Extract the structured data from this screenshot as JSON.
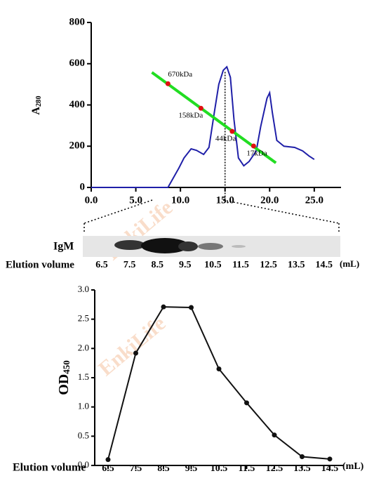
{
  "watermark": "EnkiLife",
  "chart_data": [
    {
      "type": "line",
      "y_label": {
        "text": "A",
        "sub": "280"
      },
      "x": [
        0,
        8.6,
        9.8,
        10.4,
        11.2,
        11.8,
        12.6,
        13.2,
        13.8,
        14.3,
        14.8,
        15.2,
        15.6,
        16.0,
        16.5,
        17.1,
        17.7,
        18.5,
        19.0,
        19.7,
        20.0,
        20.3,
        20.8,
        21.6,
        22.8,
        23.7,
        24.4,
        25.0
      ],
      "values": [
        0,
        0,
        92,
        143,
        187,
        180,
        160,
        194,
        364,
        500,
        568,
        585,
        534,
        330,
        143,
        105,
        126,
        177,
        296,
        432,
        459,
        364,
        228,
        200,
        194,
        177,
        153,
        136
      ],
      "color": "#1f1fa8",
      "fit_line": {
        "x": [
          6.8,
          20.7
        ],
        "values": [
          558,
          119
        ],
        "color": "#22dd22"
      },
      "markers": {
        "x": [
          8.6,
          12.3,
          15.8,
          18.2
        ],
        "values": [
          503,
          384,
          272,
          201
        ],
        "labels": [
          "670kDa",
          "158kDa",
          "44kDa",
          "17kDa"
        ],
        "color": "#e01010"
      },
      "reference_x": 15,
      "xlim": [
        0,
        28
      ],
      "ylim": [
        0,
        800
      ],
      "xticks": [
        {
          "value": 0,
          "label": "0.0"
        },
        {
          "value": 5,
          "label": "5.0"
        },
        {
          "value": 10,
          "label": "10.0"
        },
        {
          "value": 15,
          "label": "15.0"
        },
        {
          "value": 20,
          "label": "20.0"
        },
        {
          "value": 25,
          "label": "25.0"
        }
      ],
      "yticks": [
        0,
        200,
        400,
        600,
        800
      ]
    },
    {
      "type": "line",
      "y_label": {
        "text": "OD",
        "sub": "450"
      },
      "x_label": "Elution volume",
      "x_unit": "(mL)",
      "categories": [
        "6.5",
        "7.5",
        "8.5",
        "9.5",
        "10.5",
        "11.5",
        "12.5",
        "13.5",
        "14.5"
      ],
      "values": [
        0.1,
        1.92,
        2.71,
        2.7,
        1.65,
        1.07,
        0.52,
        0.15,
        0.11
      ],
      "color": "#111111",
      "ylim": [
        0,
        3
      ],
      "yticks": [
        {
          "value": 0,
          "label": "0.0"
        },
        {
          "value": 0.5,
          "label": "0.5"
        },
        {
          "value": 1,
          "label": "1.0"
        },
        {
          "value": 1.5,
          "label": "1.5"
        },
        {
          "value": 2,
          "label": "2.0"
        },
        {
          "value": 2.5,
          "label": "2.5"
        },
        {
          "value": 3,
          "label": "3.0"
        }
      ]
    }
  ],
  "blot": {
    "label": "IgM",
    "axis_label": "Elution volume",
    "unit": "(mL)",
    "lanes": [
      "6.5",
      "7.5",
      "8.5",
      "9.5",
      "10.5",
      "11.5",
      "12.5",
      "13.5",
      "14.5"
    ]
  }
}
